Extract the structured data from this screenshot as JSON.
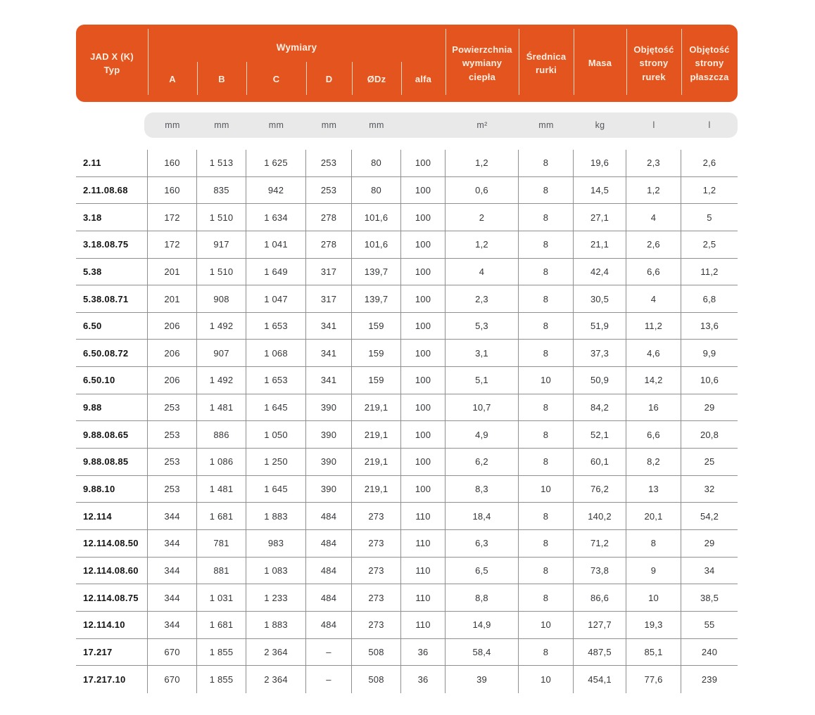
{
  "colors": {
    "accent_orange": "#E4541E",
    "header_text": "#FAEFE2",
    "units_band_bg": "#E9E9EA",
    "units_text": "#55575C",
    "grid_line": "#8F8F8F",
    "value_text": "#333538"
  },
  "table": {
    "header": {
      "typ_line1": "JAD X (K)",
      "typ_line2": "Typ",
      "group_label": "Wymiary",
      "dim_columns": [
        "A",
        "B",
        "C",
        "D",
        "ØDz",
        "alfa"
      ],
      "other_columns": [
        "Powierzchnia wymiany ciepła",
        "Średnica rurki",
        "Masa",
        "Objętość strony rurek",
        "Objętość strony płaszcza"
      ]
    },
    "units": [
      "mm",
      "mm",
      "mm",
      "mm",
      "mm",
      "",
      "m²",
      "mm",
      "kg",
      "l",
      "l"
    ],
    "rows": [
      [
        "2.11",
        "160",
        "1 513",
        "1 625",
        "253",
        "80",
        "100",
        "1,2",
        "8",
        "19,6",
        "2,3",
        "2,6"
      ],
      [
        "2.11.08.68",
        "160",
        "835",
        "942",
        "253",
        "80",
        "100",
        "0,6",
        "8",
        "14,5",
        "1,2",
        "1,2"
      ],
      [
        "3.18",
        "172",
        "1 510",
        "1 634",
        "278",
        "101,6",
        "100",
        "2",
        "8",
        "27,1",
        "4",
        "5"
      ],
      [
        "3.18.08.75",
        "172",
        "917",
        "1 041",
        "278",
        "101,6",
        "100",
        "1,2",
        "8",
        "21,1",
        "2,6",
        "2,5"
      ],
      [
        "5.38",
        "201",
        "1 510",
        "1 649",
        "317",
        "139,7",
        "100",
        "4",
        "8",
        "42,4",
        "6,6",
        "11,2"
      ],
      [
        "5.38.08.71",
        "201",
        "908",
        "1 047",
        "317",
        "139,7",
        "100",
        "2,3",
        "8",
        "30,5",
        "4",
        "6,8"
      ],
      [
        "6.50",
        "206",
        "1 492",
        "1 653",
        "341",
        "159",
        "100",
        "5,3",
        "8",
        "51,9",
        "11,2",
        "13,6"
      ],
      [
        "6.50.08.72",
        "206",
        "907",
        "1 068",
        "341",
        "159",
        "100",
        "3,1",
        "8",
        "37,3",
        "4,6",
        "9,9"
      ],
      [
        "6.50.10",
        "206",
        "1 492",
        "1 653",
        "341",
        "159",
        "100",
        "5,1",
        "10",
        "50,9",
        "14,2",
        "10,6"
      ],
      [
        "9.88",
        "253",
        "1 481",
        "1 645",
        "390",
        "219,1",
        "100",
        "10,7",
        "8",
        "84,2",
        "16",
        "29"
      ],
      [
        "9.88.08.65",
        "253",
        "886",
        "1 050",
        "390",
        "219,1",
        "100",
        "4,9",
        "8",
        "52,1",
        "6,6",
        "20,8"
      ],
      [
        "9.88.08.85",
        "253",
        "1 086",
        "1 250",
        "390",
        "219,1",
        "100",
        "6,2",
        "8",
        "60,1",
        "8,2",
        "25"
      ],
      [
        "9.88.10",
        "253",
        "1 481",
        "1 645",
        "390",
        "219,1",
        "100",
        "8,3",
        "10",
        "76,2",
        "13",
        "32"
      ],
      [
        "12.114",
        "344",
        "1 681",
        "1 883",
        "484",
        "273",
        "110",
        "18,4",
        "8",
        "140,2",
        "20,1",
        "54,2"
      ],
      [
        "12.114.08.50",
        "344",
        "781",
        "983",
        "484",
        "273",
        "110",
        "6,3",
        "8",
        "71,2",
        "8",
        "29"
      ],
      [
        "12.114.08.60",
        "344",
        "881",
        "1 083",
        "484",
        "273",
        "110",
        "6,5",
        "8",
        "73,8",
        "9",
        "34"
      ],
      [
        "12.114.08.75",
        "344",
        "1 031",
        "1 233",
        "484",
        "273",
        "110",
        "8,8",
        "8",
        "86,6",
        "10",
        "38,5"
      ],
      [
        "12.114.10",
        "344",
        "1 681",
        "1 883",
        "484",
        "273",
        "110",
        "14,9",
        "10",
        "127,7",
        "19,3",
        "55"
      ],
      [
        "17.217",
        "670",
        "1 855",
        "2 364",
        "–",
        "508",
        "36",
        "58,4",
        "8",
        "487,5",
        "85,1",
        "240"
      ],
      [
        "17.217.10",
        "670",
        "1 855",
        "2 364",
        "–",
        "508",
        "36",
        "39",
        "10",
        "454,1",
        "77,6",
        "239"
      ]
    ]
  }
}
